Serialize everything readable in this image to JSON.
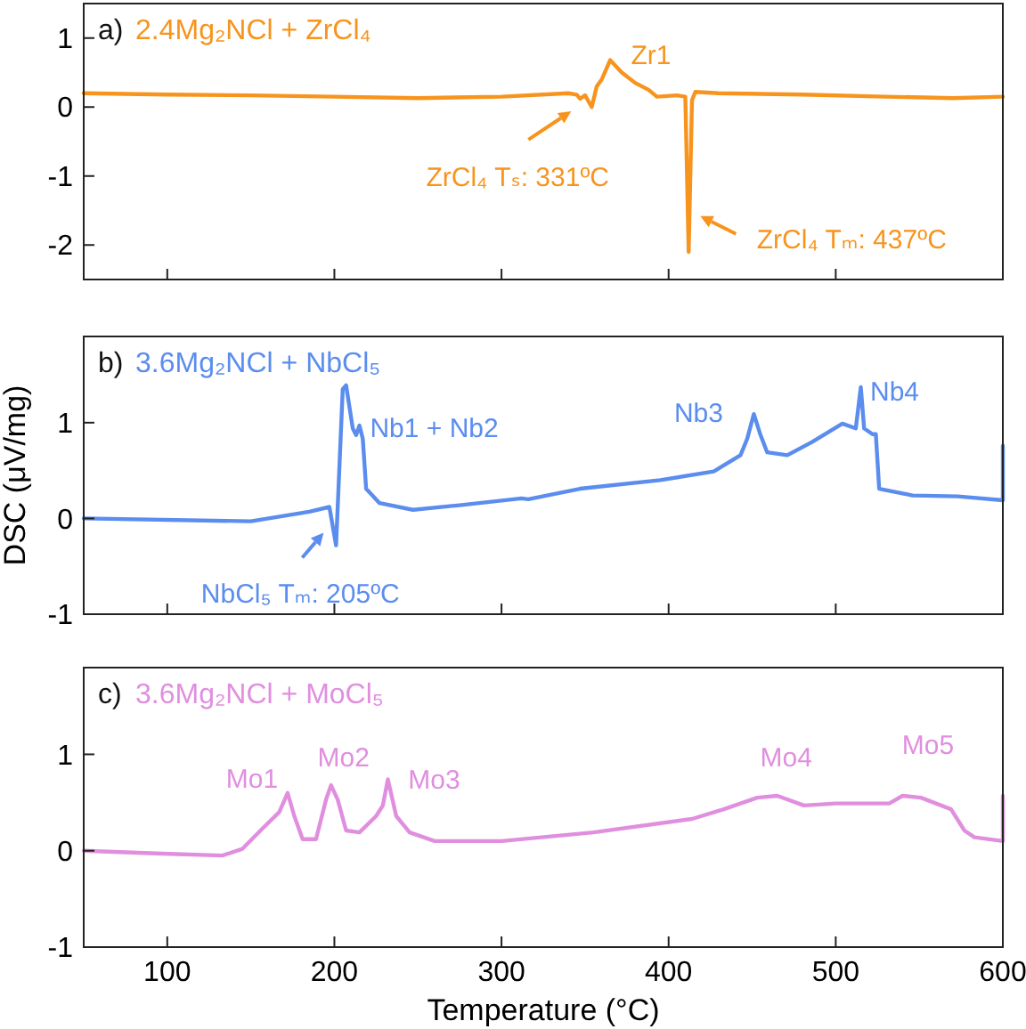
{
  "chart_data": [
    {
      "type": "line",
      "title": "2.4Mg₂NCl + ZrCl₄",
      "xlim": [
        50,
        600
      ],
      "xticks": [
        100,
        200,
        300,
        400,
        500,
        600
      ],
      "ylim": [
        -2.5,
        1.5
      ],
      "yticks": [
        -2,
        -1,
        0,
        1
      ],
      "tick_labels": "y",
      "grid": false,
      "series": [
        {
          "color": "#f7941d",
          "x": [
            50,
            100,
            150,
            200,
            250,
            300,
            340,
            345,
            347,
            350,
            354,
            357,
            360,
            365,
            372,
            380,
            388,
            393,
            405,
            410,
            412,
            414,
            416,
            430,
            480,
            530,
            570,
            600
          ],
          "values": [
            0.2,
            0.18,
            0.17,
            0.15,
            0.13,
            0.15,
            0.2,
            0.18,
            0.12,
            0.17,
            0.0,
            0.3,
            0.4,
            0.68,
            0.5,
            0.35,
            0.25,
            0.15,
            0.17,
            0.15,
            -2.1,
            0.1,
            0.22,
            0.2,
            0.18,
            0.15,
            0.13,
            0.15
          ]
        }
      ],
      "annotations": [
        "a)",
        {
          "text": "Zr1",
          "x": 365,
          "y": 0.68
        },
        {
          "text": "ZrCl₄ Tₛ: 331ºC",
          "x": 347,
          "y": 0.12
        },
        {
          "text": "ZrCl₄ Tₘ: 437ºC",
          "x": 411.5,
          "y": -1.58
        }
      ]
    },
    {
      "type": "line",
      "title": "3.6Mg₂NCl + NbCl₅",
      "ylabel": "DSC (μV/mg)",
      "xlim": [
        50,
        600
      ],
      "xticks": [
        100,
        200,
        300,
        400,
        500,
        600
      ],
      "ylim": [
        -1,
        1.9
      ],
      "yticks": [
        -1,
        0,
        1
      ],
      "tick_labels": "y",
      "grid": false,
      "series": [
        {
          "color": "#5b8def",
          "x": [
            50,
            150,
            185,
            197,
            201,
            205,
            207,
            211,
            213,
            215,
            217,
            219,
            227,
            247,
            276,
            312,
            316,
            347,
            395,
            427,
            443,
            447,
            451,
            455,
            459,
            471,
            486,
            504,
            512,
            515,
            517,
            522,
            524,
            526,
            546,
            573,
            600,
            600
          ],
          "values": [
            0.0,
            -0.03,
            0.07,
            0.12,
            -0.28,
            1.35,
            1.39,
            0.94,
            0.87,
            0.97,
            0.83,
            0.31,
            0.16,
            0.09,
            0.14,
            0.21,
            0.2,
            0.31,
            0.4,
            0.49,
            0.66,
            0.83,
            1.09,
            0.87,
            0.69,
            0.66,
            0.8,
            0.99,
            0.94,
            1.37,
            0.94,
            0.88,
            0.88,
            0.31,
            0.24,
            0.23,
            0.19,
            0.76
          ]
        }
      ],
      "annotations": [
        "b)",
        {
          "text": "Nb1 + Nb2",
          "x": 215,
          "y": 0.97
        },
        {
          "text": "Nb3",
          "x": 451,
          "y": 1.09
        },
        {
          "text": "Nb4",
          "x": 515,
          "y": 1.37
        },
        {
          "text": "NbCl₅ Tₘ: 205ºC",
          "x": 201,
          "y": -0.28
        }
      ]
    },
    {
      "type": "line",
      "title": "3.6Mg₂NCl + MoCl₅",
      "xlabel": "Temperature (°C)",
      "xlim": [
        50,
        600
      ],
      "xticks": [
        100,
        200,
        300,
        400,
        500,
        600
      ],
      "ylim": [
        -1,
        1.9
      ],
      "yticks": [
        -1,
        0,
        1
      ],
      "grid": false,
      "series": [
        {
          "color": "#e08fdf",
          "x": [
            50,
            97,
            133,
            145,
            157,
            167,
            172,
            176,
            181,
            189,
            195,
            198,
            202,
            207,
            215,
            225,
            229,
            232,
            237,
            245,
            260,
            300,
            355,
            414,
            433,
            453,
            465,
            481,
            500,
            532,
            540,
            551,
            569,
            577,
            583,
            600,
            600
          ],
          "values": [
            0.0,
            -0.03,
            -0.05,
            0.02,
            0.23,
            0.4,
            0.6,
            0.36,
            0.12,
            0.12,
            0.53,
            0.68,
            0.53,
            0.21,
            0.19,
            0.36,
            0.47,
            0.74,
            0.36,
            0.19,
            0.1,
            0.1,
            0.19,
            0.33,
            0.43,
            0.55,
            0.57,
            0.47,
            0.49,
            0.49,
            0.57,
            0.55,
            0.43,
            0.21,
            0.14,
            0.1,
            0.57
          ]
        }
      ],
      "annotations": [
        "c)",
        {
          "text": "Mo1",
          "x": 172,
          "y": 0.6
        },
        {
          "text": "Mo2",
          "x": 198,
          "y": 0.68
        },
        {
          "text": "Mo3",
          "x": 232,
          "y": 0.74
        },
        {
          "text": "Mo4",
          "x": 465,
          "y": 0.57
        },
        {
          "text": "Mo5",
          "x": 551,
          "y": 0.55
        }
      ]
    }
  ]
}
